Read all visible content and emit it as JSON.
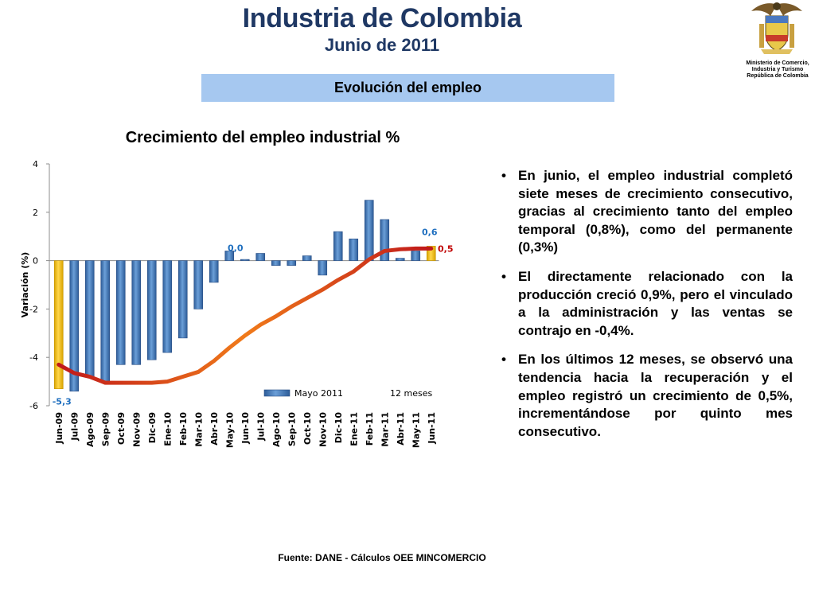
{
  "header": {
    "title": "Industria de Colombia",
    "subtitle": "Junio de 2011"
  },
  "logo": {
    "name": "coat-of-arms-icon",
    "ministry_lines": [
      "Ministerio de Comercio,",
      "Industria y Turismo",
      "República de Colombia"
    ]
  },
  "section_label": "Evolución del empleo",
  "chart_data": {
    "type": "bar",
    "title": "Crecimiento del empleo industrial %",
    "xlabel": "",
    "ylabel": "Variación (%)",
    "ylim": [
      -6,
      4
    ],
    "yticks": [
      4,
      2,
      0,
      -2,
      -4,
      -6
    ],
    "grid": false,
    "legend_position": "bottom-right",
    "categories": [
      "Jun-09",
      "Jul-09",
      "Ago-09",
      "Sep-09",
      "Oct-09",
      "Nov-09",
      "Dic-09",
      "Ene-10",
      "Feb-10",
      "Mar-10",
      "Abr-10",
      "May-10",
      "Jun-10",
      "Jul-10",
      "Ago-10",
      "Sep-10",
      "Oct-10",
      "Nov-10",
      "Dic-10",
      "Ene-11",
      "Feb-11",
      "Mar-11",
      "Abr-11",
      "May-11",
      "Jun-11"
    ],
    "series": [
      {
        "name": "Mayo 2011",
        "kind": "bar",
        "color": "#4f81bd",
        "highlight_color": "#f5c518",
        "highlight_indices": [
          0,
          24
        ],
        "values": [
          -5.3,
          -5.4,
          -4.8,
          -5.0,
          -4.3,
          -4.3,
          -4.1,
          -3.8,
          -3.2,
          -2.0,
          -0.9,
          0.4,
          0.0,
          0.3,
          -0.2,
          -0.2,
          0.2,
          -0.6,
          1.2,
          0.9,
          2.5,
          1.7,
          0.1,
          0.4,
          0.6
        ]
      },
      {
        "name": "12 meses",
        "kind": "line",
        "color": "#e8331a",
        "values": [
          -4.3,
          -4.65,
          -4.8,
          -5.05,
          -5.05,
          -5.05,
          -5.05,
          -5.0,
          -4.8,
          -4.6,
          -4.15,
          -3.6,
          -3.1,
          -2.65,
          -2.3,
          -1.9,
          -1.55,
          -1.2,
          -0.8,
          -0.45,
          0.05,
          0.4,
          0.47,
          0.5,
          0.5
        ]
      }
    ],
    "data_labels": [
      {
        "text": "-5,3",
        "series": "Mayo 2011",
        "index": 0,
        "color": "#1f6fbf"
      },
      {
        "text": "0,0",
        "series": "Mayo 2011",
        "index": 12,
        "color": "#1f6fbf"
      },
      {
        "text": "0,6",
        "series": "Mayo 2011",
        "index": 24,
        "color": "#1f6fbf"
      },
      {
        "text": "0,5",
        "series": "12 meses",
        "index": 24,
        "color": "#c00000"
      }
    ]
  },
  "bullets": [
    "En junio, el empleo industrial completó siete meses de crecimiento consecutivo, gracias al crecimiento tanto del empleo temporal (0,8%), como del permanente (0,3%)",
    "El directamente relacionado con la producción creció 0,9%, pero el vinculado a la administración y las ventas se contrajo en -0,4%.",
    "En los últimos 12 meses, se observó una tendencia hacia la recuperación y el empleo registró un crecimiento de 0,5%, incrementándose por quinto mes consecutivo."
  ],
  "bullet_symbol": "•",
  "source": "Fuente: DANE - Cálculos OEE MINCOMERCIO"
}
